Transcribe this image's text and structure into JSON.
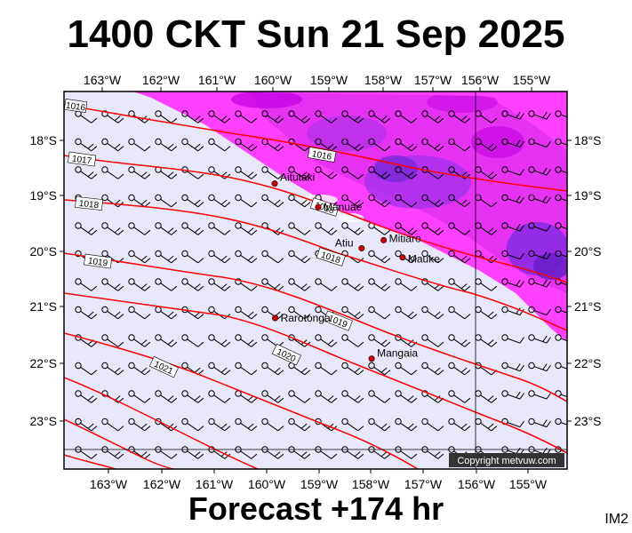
{
  "title": "1400 CKT Sun 21 Sep 2025",
  "footer": "Forecast +174 hr",
  "image_tag": "IM2",
  "copyright": "Copyright metvuw.com",
  "map": {
    "lon_ticks": [
      "163°W",
      "162°W",
      "161°W",
      "160°W",
      "159°W",
      "158°W",
      "157°W",
      "156°W",
      "155°W"
    ],
    "lat_ticks": [
      "18°S",
      "19°S",
      "20°S",
      "21°S",
      "22°S",
      "23°S"
    ],
    "places": [
      {
        "name": "Aitutaki",
        "lon": -159.78,
        "lat": -18.86
      },
      {
        "name": "Manuae",
        "lon": -158.95,
        "lat": -19.27
      },
      {
        "name": "Atiu",
        "lon": -158.12,
        "lat": -19.99
      },
      {
        "name": "Mitiaro",
        "lon": -157.7,
        "lat": -19.85
      },
      {
        "name": "Mauke",
        "lon": -157.34,
        "lat": -20.15
      },
      {
        "name": "Rarotonga",
        "lon": -159.77,
        "lat": -21.21
      },
      {
        "name": "Mangaia",
        "lon": -157.93,
        "lat": -21.92
      }
    ],
    "isobar_labels": [
      "1016",
      "1016",
      "1017",
      "1018",
      "1018",
      "1018",
      "1019",
      "1019",
      "1020",
      "1021"
    ],
    "colors": {
      "ocean": "#e8e8fa",
      "isobar": "#ff0000",
      "rain_light": "#ff40ff",
      "rain_heavy": "#c000e0",
      "rain_max": "#8a2be2",
      "place_dot": "#cc0000"
    }
  }
}
